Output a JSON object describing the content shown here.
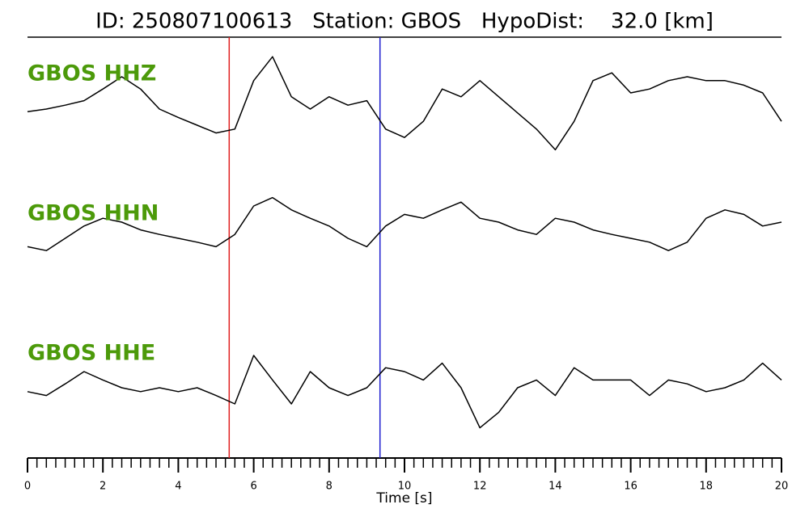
{
  "chart_data": {
    "type": "line",
    "title": "ID: 250807100613   Station: GBOS   HypoDist:    32.0 [km]",
    "xlabel": "Time [s]",
    "xlim": [
      0,
      20
    ],
    "xticks": [
      0,
      2,
      4,
      6,
      8,
      10,
      12,
      14,
      16,
      18,
      20
    ],
    "xminorticks": [
      0.25,
      0.5,
      0.75,
      1,
      1.25,
      1.5,
      1.75,
      2.25,
      2.5,
      2.75,
      3,
      3.25,
      3.5,
      3.75,
      4.25,
      4.5,
      4.75,
      5,
      5.25,
      5.5,
      5.75,
      6.25,
      6.5,
      6.75,
      7,
      7.25,
      7.5,
      7.75,
      8.25,
      8.5,
      8.75,
      9,
      9.25,
      9.5,
      9.75,
      10.25,
      10.5,
      10.75,
      11,
      11.25,
      11.5,
      11.75,
      12.25,
      12.5,
      12.75,
      13,
      13.25,
      13.5,
      13.75,
      14.25,
      14.5,
      14.75,
      15,
      15.25,
      15.5,
      15.75,
      16.25,
      16.5,
      16.75,
      17,
      17.25,
      17.5,
      17.75,
      18.25,
      18.5,
      18.75,
      19,
      19.25,
      19.5,
      19.75
    ],
    "ylim": [
      -1,
      1
    ],
    "label_color": "#4c9a0a",
    "markers": [
      {
        "x": 5.35,
        "color": "#e02020"
      },
      {
        "x": 9.35,
        "color": "#2020d0"
      }
    ],
    "x": [
      0,
      0.5,
      1,
      1.5,
      2,
      2.5,
      3,
      3.5,
      4,
      4.5,
      5,
      5.5,
      6,
      6.5,
      7,
      7.5,
      8,
      8.5,
      9,
      9.5,
      10,
      10.5,
      11,
      11.5,
      12,
      12.5,
      13,
      13.5,
      14,
      14.5,
      15,
      15.5,
      16,
      16.5,
      17,
      17.5,
      18,
      18.5,
      19,
      19.5,
      20
    ],
    "series": [
      {
        "name": "GBOS HHZ",
        "color": "#000000",
        "values": [
          -0.29,
          -0.25,
          -0.19,
          -0.12,
          0.06,
          0.25,
          0.06,
          -0.25,
          -0.38,
          -0.5,
          -0.62,
          -0.56,
          0.19,
          0.56,
          -0.06,
          -0.25,
          -0.06,
          -0.19,
          -0.12,
          -0.56,
          -0.69,
          -0.44,
          0.06,
          -0.06,
          0.19,
          -0.06,
          -0.31,
          -0.56,
          -0.88,
          -0.44,
          0.19,
          0.31,
          0,
          0.06,
          0.19,
          0.25,
          0.19,
          0.19,
          0.12,
          0,
          -0.44
        ]
      },
      {
        "name": "GBOS HHN",
        "color": "#000000",
        "values": [
          -0.38,
          -0.44,
          -0.25,
          -0.06,
          0.06,
          0,
          -0.12,
          -0.19,
          -0.25,
          -0.31,
          -0.38,
          -0.19,
          0.25,
          0.38,
          0.19,
          0.06,
          -0.06,
          -0.25,
          -0.38,
          -0.06,
          0.12,
          0.06,
          0.19,
          0.31,
          0.06,
          0,
          -0.12,
          -0.19,
          0.06,
          0,
          -0.12,
          -0.19,
          -0.25,
          -0.31,
          -0.44,
          -0.31,
          0.06,
          0.19,
          0.12,
          -0.06,
          0
        ]
      },
      {
        "name": "GBOS HHE",
        "color": "#000000",
        "values": [
          -0.06,
          -0.12,
          0.06,
          0.25,
          0.12,
          0,
          -0.06,
          0,
          -0.06,
          0,
          -0.12,
          -0.25,
          0.5,
          0.12,
          -0.25,
          0.25,
          0,
          -0.12,
          0,
          0.31,
          0.25,
          0.12,
          0.38,
          0,
          -0.62,
          -0.38,
          0,
          0.12,
          -0.12,
          0.31,
          0.12,
          0.12,
          0.12,
          -0.12,
          0.12,
          0.06,
          -0.06,
          0,
          0.12,
          0.38,
          0.12
        ]
      }
    ]
  }
}
